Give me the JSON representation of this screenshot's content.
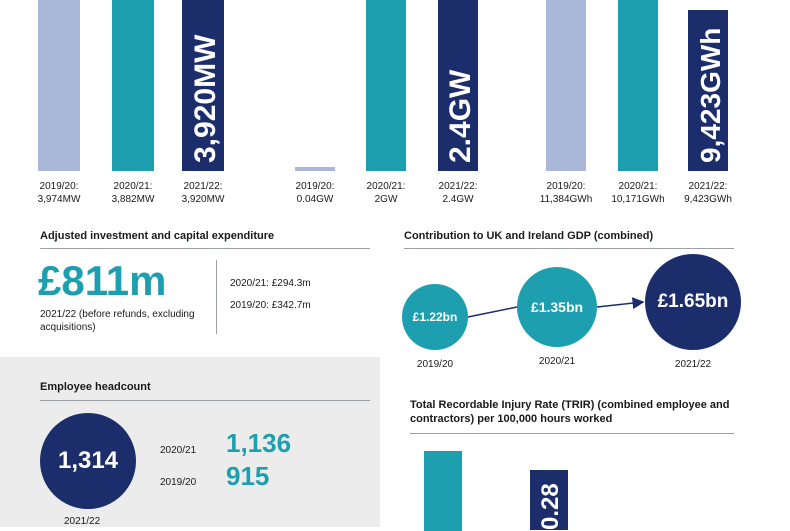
{
  "colors": {
    "navy": "#1c2d6b",
    "teal": "#1e9fb0",
    "light": "#a9b8d8",
    "text": "#1a1a1a"
  },
  "chart_data": [
    {
      "type": "bar",
      "categories": [
        "2019/20:\n3,974MW",
        "2020/21:\n3,882MW",
        "2021/22:\n3,920MW"
      ],
      "values": [
        3974,
        3882,
        3920
      ],
      "bar_labels": [
        "",
        "",
        "3,920MW"
      ]
    },
    {
      "type": "bar",
      "categories": [
        "2019/20:\n0.04GW",
        "2020/21:\n2GW",
        "2021/22:\n2.4GW"
      ],
      "values": [
        0.04,
        2,
        2.4
      ],
      "bar_labels": [
        "",
        "",
        "2.4GW"
      ]
    },
    {
      "type": "bar",
      "categories": [
        "2019/20:\n11,384GWh",
        "2020/21:\n10,171GWh",
        "2021/22:\n9,423GWh"
      ],
      "values": [
        11384,
        10171,
        9423
      ],
      "bar_labels": [
        "",
        "",
        "9,423GWh"
      ]
    },
    {
      "type": "line",
      "title": "Contribution to UK and Ireland GDP (combined)",
      "categories": [
        "2019/20",
        "2020/21",
        "2021/22"
      ],
      "values": [
        1.22,
        1.35,
        1.65
      ],
      "value_labels": [
        "£1.22bn",
        "£1.35bn",
        "£1.65bn"
      ]
    },
    {
      "type": "bar",
      "title": "Total Recordable Injury Rate (TRIR) (combined employee and contractors) per 100,000 hours worked",
      "bar_labels": [
        "",
        "0.28"
      ]
    }
  ],
  "investment": {
    "title": "Adjusted investment and capital expenditure",
    "big_value": "£811m",
    "caption": "2021/22 (before refunds, excluding acquisitions)",
    "prior1": "2020/21: £294.3m",
    "prior2": "2019/20: £342.7m"
  },
  "headcount": {
    "title": "Employee headcount",
    "current": "1,314",
    "current_year": "2021/22",
    "prior1_year": "2020/21",
    "prior1_value": "1,136",
    "prior2_year": "2019/20",
    "prior2_value": "915"
  }
}
